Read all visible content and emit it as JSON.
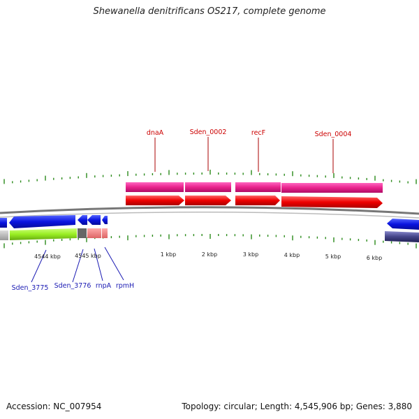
{
  "title": "Shewanella denitrificans OS217, complete genome",
  "footer": {
    "accession": "Accession: NC_007954",
    "topology": "Topology: circular; Length: 4,545,906 bp; Genes: 3,880"
  },
  "scale_labels": [
    "4544 kbp",
    "4545 kbp",
    "1 kbp",
    "2 kbp",
    "3 kbp",
    "4 kbp",
    "5 kbp",
    "6 kbp"
  ],
  "forward_genes": [
    {
      "name": "dnaA",
      "color": "#cc0000"
    },
    {
      "name": "Sden_0002",
      "color": "#cc0000"
    },
    {
      "name": "recF",
      "color": "#cc0000"
    },
    {
      "name": "Sden_0004",
      "color": "#cc0000"
    }
  ],
  "reverse_genes": [
    {
      "name": "Sden_3775",
      "color": "#1a1ab3"
    },
    {
      "name": "Sden_3776",
      "color": "#1a1ab3"
    },
    {
      "name": "rnpA",
      "color": "#1a1ab3"
    },
    {
      "name": "rpmH",
      "color": "#1a1ab3"
    }
  ],
  "colors": {
    "forward_cds": "#ee0000",
    "forward_gene": "#e8228c",
    "reverse_cds": "#0a14e0",
    "reverse_gene_green": "#99ee22",
    "tick": "#2a8a1a",
    "backbone": "#777777"
  }
}
